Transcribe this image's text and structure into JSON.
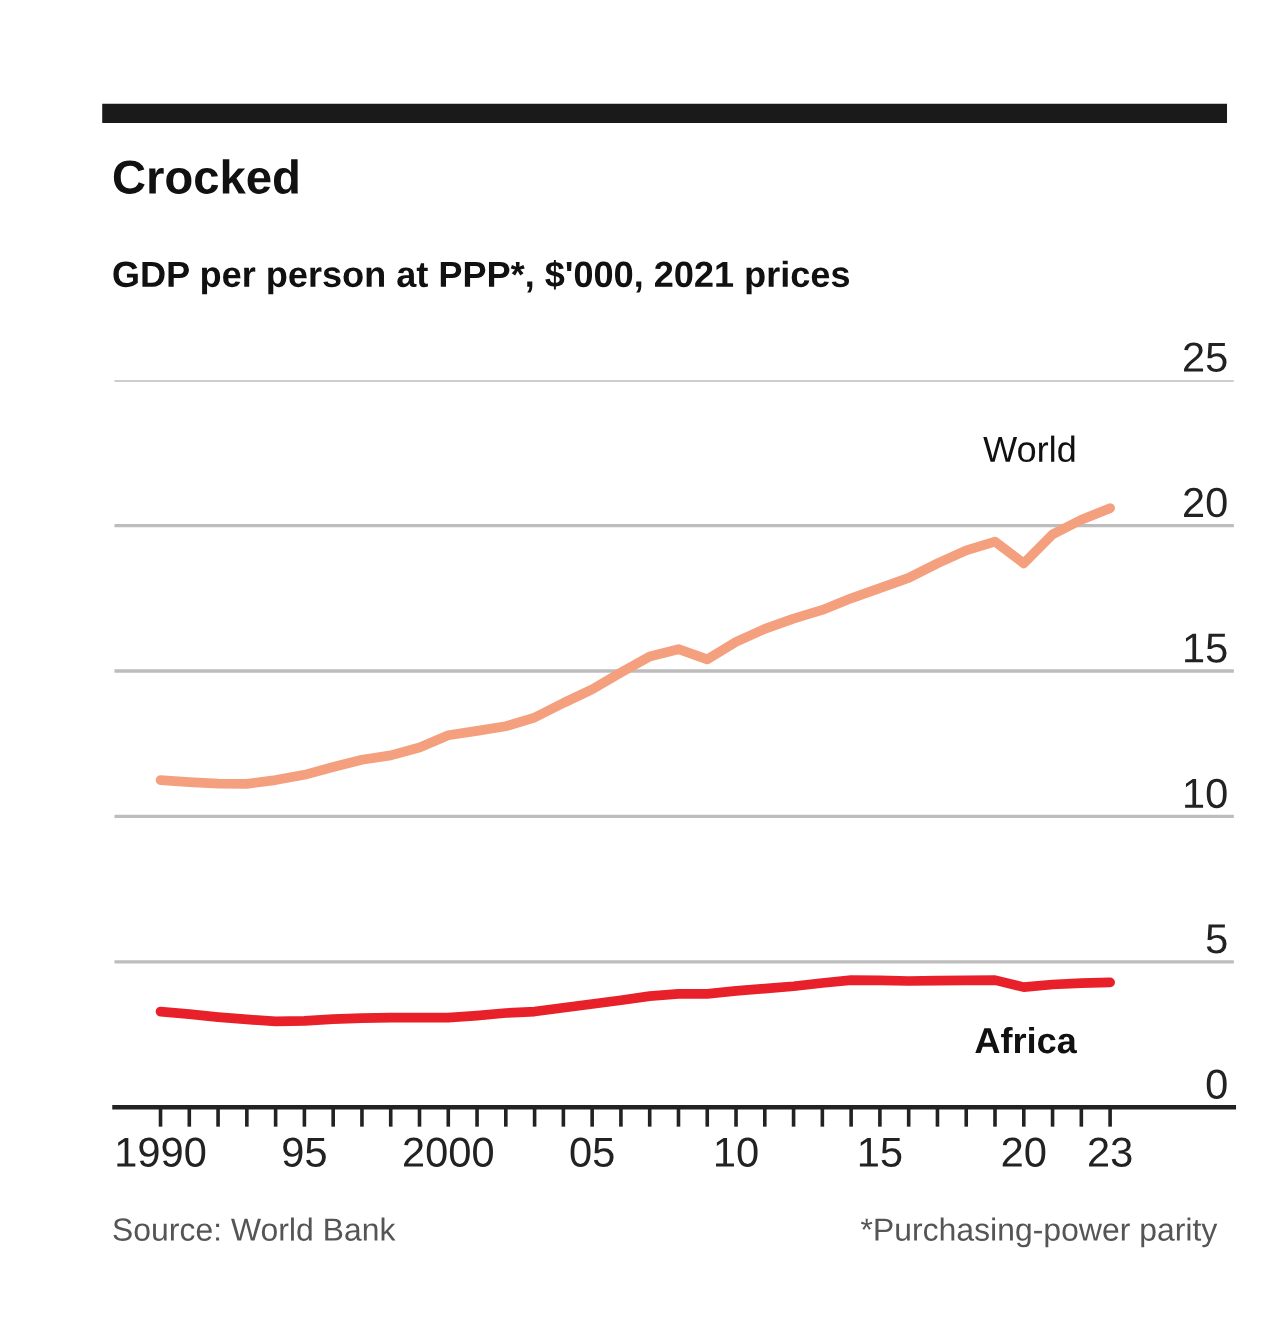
{
  "chart_data": {
    "type": "line",
    "title": "Crocked",
    "subtitle": "GDP per person at PPP*, $'000, 2021 prices",
    "annotations": [
      "Source: World Bank",
      "*Purchasing-power parity"
    ],
    "x": [
      1990,
      1991,
      1992,
      1993,
      1994,
      1995,
      1996,
      1997,
      1998,
      1999,
      2000,
      2001,
      2002,
      2003,
      2004,
      2005,
      2006,
      2007,
      2008,
      2009,
      2010,
      2011,
      2012,
      2013,
      2014,
      2015,
      2016,
      2017,
      2018,
      2019,
      2020,
      2021,
      2022,
      2023
    ],
    "series": [
      {
        "name": "World",
        "color": "#f4a07e",
        "values": [
          11.25,
          11.18,
          11.13,
          11.12,
          11.25,
          11.43,
          11.7,
          11.95,
          12.1,
          12.37,
          12.79,
          12.94,
          13.1,
          13.4,
          13.9,
          14.37,
          14.95,
          15.5,
          15.75,
          15.4,
          16.0,
          16.45,
          16.8,
          17.1,
          17.5,
          17.85,
          18.2,
          18.7,
          19.15,
          19.45,
          18.7,
          19.7,
          20.2,
          20.6
        ]
      },
      {
        "name": "Africa",
        "color": "#e8202a",
        "values": [
          3.29,
          3.2,
          3.1,
          3.02,
          2.95,
          2.97,
          3.03,
          3.06,
          3.08,
          3.08,
          3.08,
          3.15,
          3.24,
          3.29,
          3.42,
          3.55,
          3.68,
          3.82,
          3.9,
          3.9,
          4.0,
          4.08,
          4.16,
          4.27,
          4.37,
          4.36,
          4.34,
          4.35,
          4.36,
          4.37,
          4.13,
          4.22,
          4.27,
          4.29
        ]
      }
    ],
    "xlim": [
      1988.4,
      2027.3
    ],
    "xticks": [
      {
        "value": 1990,
        "label": "1990"
      },
      {
        "value": 1991,
        "label": null
      },
      {
        "value": 1992,
        "label": null
      },
      {
        "value": 1993,
        "label": null
      },
      {
        "value": 1994,
        "label": null
      },
      {
        "value": 1995,
        "label": "95"
      },
      {
        "value": 1996,
        "label": null
      },
      {
        "value": 1997,
        "label": null
      },
      {
        "value": 1998,
        "label": null
      },
      {
        "value": 1999,
        "label": null
      },
      {
        "value": 2000,
        "label": "2000"
      },
      {
        "value": 2001,
        "label": null
      },
      {
        "value": 2002,
        "label": null
      },
      {
        "value": 2003,
        "label": null
      },
      {
        "value": 2004,
        "label": null
      },
      {
        "value": 2005,
        "label": "05"
      },
      {
        "value": 2006,
        "label": null
      },
      {
        "value": 2007,
        "label": null
      },
      {
        "value": 2008,
        "label": null
      },
      {
        "value": 2009,
        "label": null
      },
      {
        "value": 2010,
        "label": "10"
      },
      {
        "value": 2011,
        "label": null
      },
      {
        "value": 2012,
        "label": null
      },
      {
        "value": 2013,
        "label": null
      },
      {
        "value": 2014,
        "label": null
      },
      {
        "value": 2015,
        "label": "15"
      },
      {
        "value": 2016,
        "label": null
      },
      {
        "value": 2017,
        "label": null
      },
      {
        "value": 2018,
        "label": null
      },
      {
        "value": 2019,
        "label": null
      },
      {
        "value": 2020,
        "label": "20"
      },
      {
        "value": 2021,
        "label": null
      },
      {
        "value": 2022,
        "label": null
      },
      {
        "value": 2023,
        "label": "23"
      }
    ],
    "ylim": [
      0,
      25
    ],
    "yticks": [
      0,
      5,
      10,
      15,
      20,
      25
    ],
    "grid": "y",
    "legend": false,
    "marker": "none",
    "line_style": "solid"
  }
}
